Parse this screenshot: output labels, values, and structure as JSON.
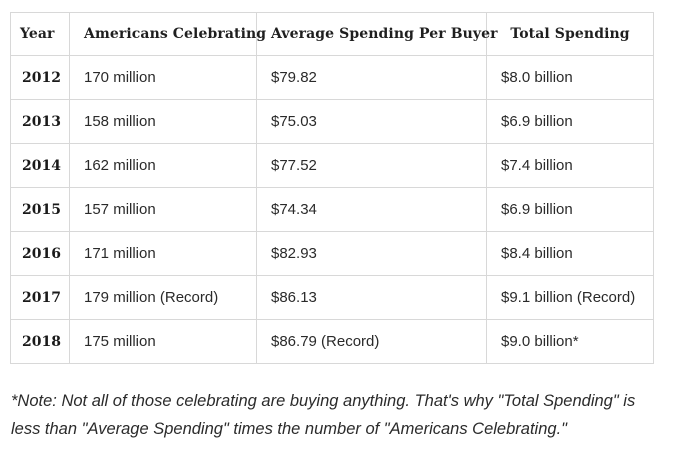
{
  "table": {
    "headers": [
      "Year",
      "Americans Celebrating",
      "Average Spending Per Buyer",
      "Total Spending"
    ],
    "rows": [
      {
        "year": "2012",
        "americans": "170 million",
        "average": "$79.82",
        "total": "$8.0 billion"
      },
      {
        "year": "2013",
        "americans": "158 million",
        "average": "$75.03",
        "total": "$6.9 billion"
      },
      {
        "year": "2014",
        "americans": "162 million",
        "average": "$77.52",
        "total": "$7.4 billion"
      },
      {
        "year": "2015",
        "americans": "157 million",
        "average": "$74.34",
        "total": "$6.9 billion"
      },
      {
        "year": "2016",
        "americans": "171 million",
        "average": "$82.93",
        "total": "$8.4 billion"
      },
      {
        "year": "2017",
        "americans": "179 million (Record)",
        "average": "$86.13",
        "total": "$9.1 billion (Record)"
      },
      {
        "year": "2018",
        "americans": "175 million",
        "average": "$86.79 (Record)",
        "total": "$9.0 billion*"
      }
    ]
  },
  "note": {
    "line1": "*Note: Not all of those celebrating are buying anything. That's why \"Total Spending\" is",
    "line2": "less than \"Average Spending\" times the number of \"Americans Celebrating.\""
  }
}
